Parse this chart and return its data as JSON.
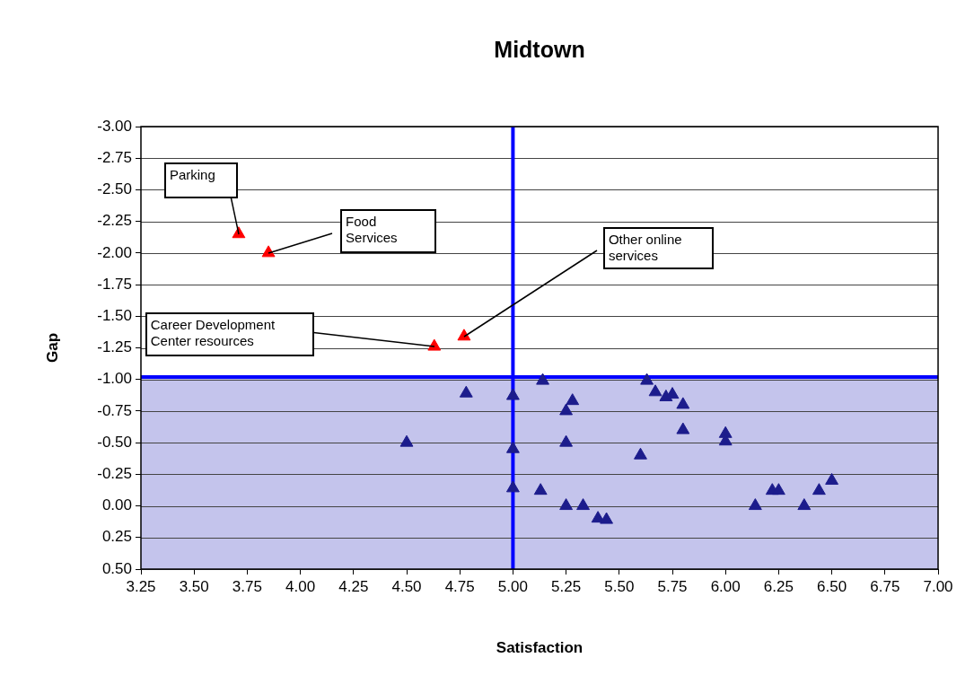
{
  "chart_data": {
    "type": "scatter",
    "title": "Midtown",
    "xlabel": "Satisfaction",
    "ylabel": "Gap",
    "marker": "triangle",
    "grid": "y",
    "legend": false,
    "xlim": [
      3.25,
      7.0
    ],
    "xticks": [
      {
        "value": 3.25,
        "label": "3.25"
      },
      {
        "value": 3.5,
        "label": "3.50"
      },
      {
        "value": 3.75,
        "label": "3.75"
      },
      {
        "value": 4.0,
        "label": "4.00"
      },
      {
        "value": 4.25,
        "label": "4.25"
      },
      {
        "value": 4.5,
        "label": "4.50"
      },
      {
        "value": 4.75,
        "label": "4.75"
      },
      {
        "value": 5.0,
        "label": "5.00"
      },
      {
        "value": 5.25,
        "label": "5.25"
      },
      {
        "value": 5.5,
        "label": "5.50"
      },
      {
        "value": 5.75,
        "label": "5.75"
      },
      {
        "value": 6.0,
        "label": "6.00"
      },
      {
        "value": 6.25,
        "label": "6.25"
      },
      {
        "value": 6.5,
        "label": "6.50"
      },
      {
        "value": 6.75,
        "label": "6.75"
      },
      {
        "value": 7.0,
        "label": "7.00"
      }
    ],
    "ylim": [
      0.5,
      -3.0
    ],
    "yticks": [
      {
        "value": -3.0,
        "label": "-3.00"
      },
      {
        "value": -2.75,
        "label": "-2.75"
      },
      {
        "value": -2.5,
        "label": "-2.50"
      },
      {
        "value": -2.25,
        "label": "-2.25"
      },
      {
        "value": -2.0,
        "label": "-2.00"
      },
      {
        "value": -1.75,
        "label": "-1.75"
      },
      {
        "value": -1.5,
        "label": "-1.50"
      },
      {
        "value": -1.25,
        "label": "-1.25"
      },
      {
        "value": -1.0,
        "label": "-1.00"
      },
      {
        "value": -0.75,
        "label": "-0.75"
      },
      {
        "value": -0.5,
        "label": "-0.50"
      },
      {
        "value": -0.25,
        "label": "-0.25"
      },
      {
        "value": 0.0,
        "label": "0.00"
      },
      {
        "value": 0.25,
        "label": "0.25"
      },
      {
        "value": 0.5,
        "label": "0.50"
      }
    ],
    "series": [
      {
        "color": "#ff0000",
        "x": [
          3.71,
          3.85,
          4.63,
          4.77
        ],
        "values": [
          -2.15,
          -2.0,
          -1.26,
          -1.34
        ]
      },
      {
        "color": "#1c1c8c",
        "x": [
          4.5,
          4.78,
          5.0,
          5.14,
          5.0,
          5.0,
          5.13,
          5.25,
          5.28,
          5.25,
          5.25,
          5.33,
          5.4,
          5.44,
          5.6,
          5.63,
          5.67,
          5.72,
          5.75,
          5.8,
          5.8,
          6.0,
          6.0,
          6.14,
          6.22,
          6.25,
          6.37,
          6.44,
          6.5
        ],
        "values": [
          -0.5,
          -0.89,
          -0.87,
          -0.99,
          -0.45,
          -0.14,
          -0.12,
          -0.75,
          -0.83,
          -0.5,
          0.0,
          0.0,
          0.1,
          0.11,
          -0.4,
          -0.99,
          -0.9,
          -0.86,
          -0.88,
          -0.8,
          -0.6,
          -0.57,
          -0.51,
          0.0,
          -0.12,
          -0.12,
          0.0,
          -0.12,
          -0.2
        ]
      }
    ],
    "bands": [
      {
        "axis": "y",
        "from": -1.02,
        "to": 0.5,
        "color": "#c4c4ec"
      }
    ],
    "ref_lines": [
      {
        "axis": "x",
        "value": 5.0,
        "color": "#0000ff"
      },
      {
        "axis": "y",
        "value": -1.02,
        "color": "#0000ff"
      }
    ],
    "annotations": [
      {
        "text": "Parking",
        "x": 3.71,
        "y": -2.15
      },
      {
        "text": "Food Services",
        "x": 3.85,
        "y": -2.0
      },
      {
        "text": "Career Development Center resources",
        "x": 4.63,
        "y": -1.26
      },
      {
        "text": "Other online services",
        "x": 4.77,
        "y": -1.34
      }
    ]
  }
}
